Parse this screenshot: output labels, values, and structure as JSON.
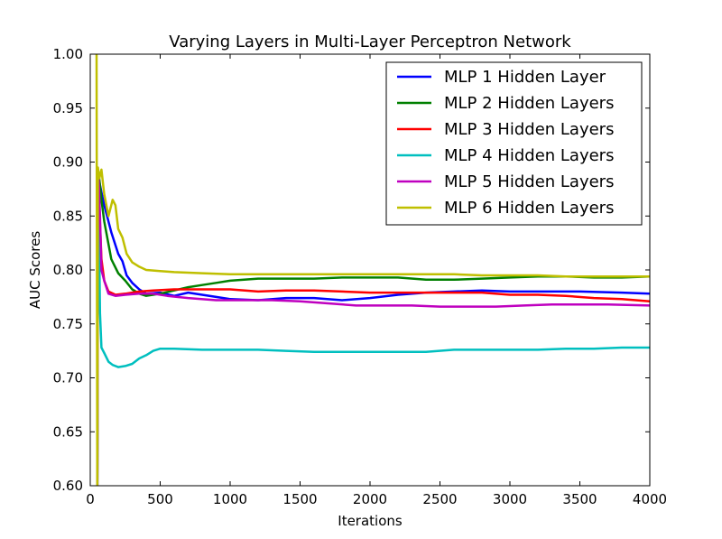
{
  "chart_data": {
    "type": "line",
    "title": "Varying Layers in Multi-Layer Perceptron Network",
    "xlabel": "Iterations",
    "ylabel": "AUC Scores",
    "xlim": [
      0,
      4000
    ],
    "ylim": [
      0.6,
      1.0
    ],
    "xticks": [
      "0",
      "500",
      "1000",
      "1500",
      "2000",
      "2500",
      "3000",
      "3500",
      "4000"
    ],
    "yticks": [
      "0.60",
      "0.65",
      "0.70",
      "0.75",
      "0.80",
      "0.85",
      "0.90",
      "0.95",
      "1.00"
    ],
    "grid": false,
    "legend_position": "top-right",
    "series": [
      {
        "name": "MLP 1 Hidden Layer",
        "color": "#0000ff",
        "points": [
          [
            50,
            0.6
          ],
          [
            55,
            0.87
          ],
          [
            60,
            0.885
          ],
          [
            80,
            0.872
          ],
          [
            100,
            0.86
          ],
          [
            150,
            0.835
          ],
          [
            200,
            0.815
          ],
          [
            230,
            0.808
          ],
          [
            260,
            0.795
          ],
          [
            300,
            0.788
          ],
          [
            350,
            0.782
          ],
          [
            400,
            0.778
          ],
          [
            500,
            0.779
          ],
          [
            600,
            0.776
          ],
          [
            700,
            0.779
          ],
          [
            900,
            0.775
          ],
          [
            1000,
            0.773
          ],
          [
            1200,
            0.772
          ],
          [
            1400,
            0.774
          ],
          [
            1600,
            0.774
          ],
          [
            1800,
            0.772
          ],
          [
            2000,
            0.774
          ],
          [
            2200,
            0.777
          ],
          [
            2400,
            0.779
          ],
          [
            2600,
            0.78
          ],
          [
            2800,
            0.781
          ],
          [
            3000,
            0.78
          ],
          [
            3200,
            0.78
          ],
          [
            3500,
            0.78
          ],
          [
            3800,
            0.779
          ],
          [
            4000,
            0.778
          ]
        ]
      },
      {
        "name": "MLP 2 Hidden Layers",
        "color": "#008000",
        "points": [
          [
            50,
            0.6
          ],
          [
            55,
            0.88
          ],
          [
            60,
            0.89
          ],
          [
            80,
            0.865
          ],
          [
            100,
            0.845
          ],
          [
            150,
            0.81
          ],
          [
            200,
            0.797
          ],
          [
            250,
            0.79
          ],
          [
            300,
            0.782
          ],
          [
            350,
            0.778
          ],
          [
            400,
            0.776
          ],
          [
            500,
            0.778
          ],
          [
            600,
            0.781
          ],
          [
            700,
            0.784
          ],
          [
            800,
            0.786
          ],
          [
            900,
            0.788
          ],
          [
            1000,
            0.79
          ],
          [
            1200,
            0.792
          ],
          [
            1400,
            0.792
          ],
          [
            1600,
            0.792
          ],
          [
            1800,
            0.793
          ],
          [
            2000,
            0.793
          ],
          [
            2200,
            0.793
          ],
          [
            2400,
            0.791
          ],
          [
            2600,
            0.791
          ],
          [
            2800,
            0.792
          ],
          [
            3000,
            0.793
          ],
          [
            3200,
            0.794
          ],
          [
            3400,
            0.794
          ],
          [
            3600,
            0.793
          ],
          [
            3800,
            0.793
          ],
          [
            4000,
            0.794
          ]
        ]
      },
      {
        "name": "MLP 3 Hidden Layers",
        "color": "#ff0000",
        "points": [
          [
            50,
            0.6
          ],
          [
            55,
            0.86
          ],
          [
            60,
            0.875
          ],
          [
            80,
            0.81
          ],
          [
            100,
            0.79
          ],
          [
            130,
            0.78
          ],
          [
            180,
            0.777
          ],
          [
            250,
            0.778
          ],
          [
            350,
            0.78
          ],
          [
            450,
            0.781
          ],
          [
            600,
            0.782
          ],
          [
            800,
            0.782
          ],
          [
            1000,
            0.782
          ],
          [
            1200,
            0.78
          ],
          [
            1400,
            0.781
          ],
          [
            1600,
            0.781
          ],
          [
            1800,
            0.78
          ],
          [
            2000,
            0.779
          ],
          [
            2200,
            0.779
          ],
          [
            2400,
            0.779
          ],
          [
            2600,
            0.779
          ],
          [
            2800,
            0.779
          ],
          [
            3000,
            0.777
          ],
          [
            3200,
            0.777
          ],
          [
            3400,
            0.776
          ],
          [
            3600,
            0.774
          ],
          [
            3800,
            0.773
          ],
          [
            4000,
            0.771
          ]
        ]
      },
      {
        "name": "MLP 4 Hidden Layers",
        "color": "#00bfbf",
        "points": [
          [
            50,
            0.6
          ],
          [
            55,
            0.87
          ],
          [
            60,
            0.868
          ],
          [
            70,
            0.76
          ],
          [
            80,
            0.728
          ],
          [
            100,
            0.723
          ],
          [
            130,
            0.715
          ],
          [
            160,
            0.712
          ],
          [
            200,
            0.71
          ],
          [
            250,
            0.711
          ],
          [
            300,
            0.713
          ],
          [
            350,
            0.718
          ],
          [
            400,
            0.721
          ],
          [
            450,
            0.725
          ],
          [
            500,
            0.727
          ],
          [
            600,
            0.727
          ],
          [
            800,
            0.726
          ],
          [
            1000,
            0.726
          ],
          [
            1200,
            0.726
          ],
          [
            1400,
            0.725
          ],
          [
            1600,
            0.724
          ],
          [
            1800,
            0.724
          ],
          [
            2000,
            0.724
          ],
          [
            2200,
            0.724
          ],
          [
            2400,
            0.724
          ],
          [
            2600,
            0.726
          ],
          [
            2800,
            0.726
          ],
          [
            3000,
            0.726
          ],
          [
            3200,
            0.726
          ],
          [
            3400,
            0.727
          ],
          [
            3600,
            0.727
          ],
          [
            3800,
            0.728
          ],
          [
            4000,
            0.728
          ]
        ]
      },
      {
        "name": "MLP 5 Hidden Layers",
        "color": "#bf00bf",
        "points": [
          [
            50,
            0.6
          ],
          [
            55,
            0.88
          ],
          [
            60,
            0.885
          ],
          [
            70,
            0.85
          ],
          [
            80,
            0.8
          ],
          [
            100,
            0.79
          ],
          [
            130,
            0.778
          ],
          [
            180,
            0.776
          ],
          [
            250,
            0.777
          ],
          [
            350,
            0.778
          ],
          [
            450,
            0.778
          ],
          [
            550,
            0.776
          ],
          [
            700,
            0.774
          ],
          [
            900,
            0.772
          ],
          [
            1100,
            0.772
          ],
          [
            1300,
            0.772
          ],
          [
            1500,
            0.771
          ],
          [
            1700,
            0.769
          ],
          [
            1900,
            0.767
          ],
          [
            2100,
            0.767
          ],
          [
            2300,
            0.767
          ],
          [
            2500,
            0.766
          ],
          [
            2700,
            0.766
          ],
          [
            2900,
            0.766
          ],
          [
            3100,
            0.767
          ],
          [
            3300,
            0.768
          ],
          [
            3500,
            0.768
          ],
          [
            3700,
            0.768
          ],
          [
            4000,
            0.767
          ]
        ]
      },
      {
        "name": "MLP 6 Hidden Layers",
        "color": "#bfbf00",
        "points": [
          [
            45,
            1.0
          ],
          [
            50,
            0.6
          ],
          [
            55,
            0.895
          ],
          [
            65,
            0.885
          ],
          [
            80,
            0.893
          ],
          [
            100,
            0.87
          ],
          [
            130,
            0.85
          ],
          [
            160,
            0.865
          ],
          [
            180,
            0.86
          ],
          [
            200,
            0.838
          ],
          [
            230,
            0.83
          ],
          [
            260,
            0.815
          ],
          [
            300,
            0.807
          ],
          [
            350,
            0.803
          ],
          [
            400,
            0.8
          ],
          [
            500,
            0.799
          ],
          [
            600,
            0.798
          ],
          [
            800,
            0.797
          ],
          [
            1000,
            0.796
          ],
          [
            1200,
            0.796
          ],
          [
            1400,
            0.796
          ],
          [
            1600,
            0.796
          ],
          [
            1800,
            0.796
          ],
          [
            2000,
            0.796
          ],
          [
            2200,
            0.796
          ],
          [
            2400,
            0.796
          ],
          [
            2600,
            0.796
          ],
          [
            2800,
            0.795
          ],
          [
            3000,
            0.795
          ],
          [
            3200,
            0.795
          ],
          [
            3400,
            0.794
          ],
          [
            3600,
            0.794
          ],
          [
            3800,
            0.794
          ],
          [
            4000,
            0.794
          ]
        ]
      }
    ]
  }
}
